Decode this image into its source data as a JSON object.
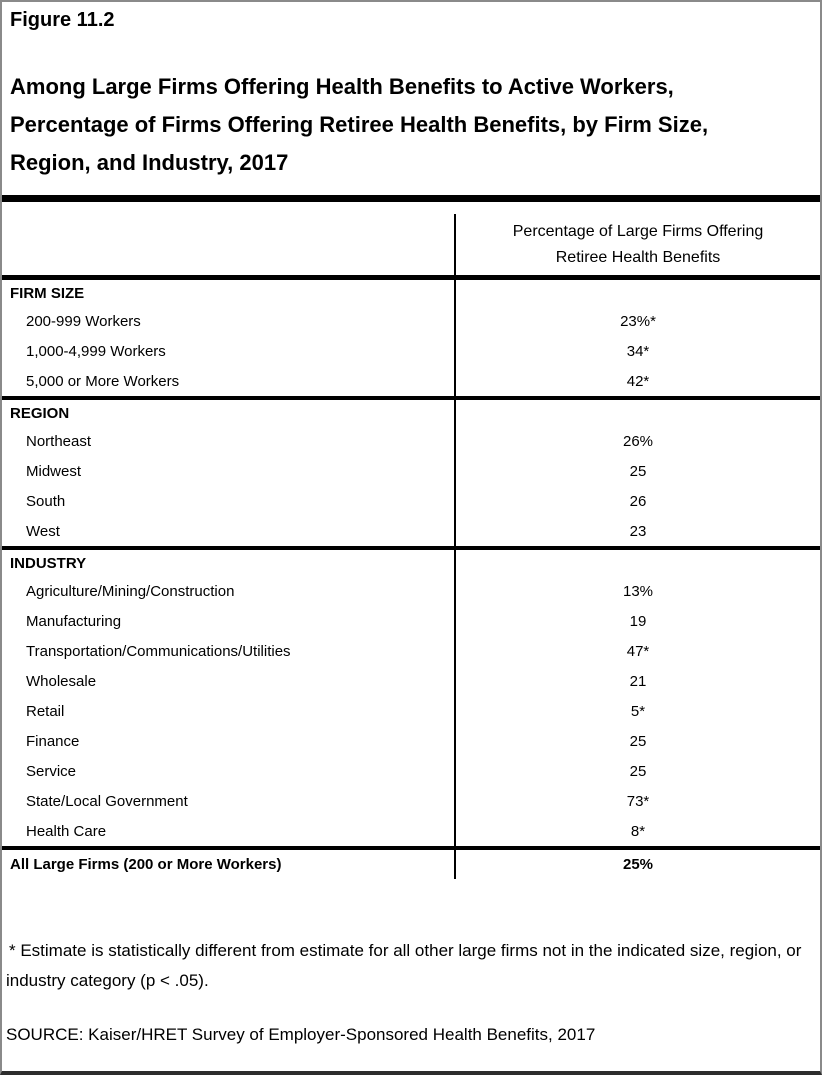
{
  "figure": {
    "label": "Figure 11.2",
    "title_lines": [
      "Among Large Firms Offering Health Benefits to Active Workers,",
      "Percentage of Firms Offering Retiree Health Benefits, by Firm Size,",
      "Region, and Industry, 2017"
    ]
  },
  "table": {
    "value_column_header_line1": "Percentage of Large Firms Offering",
    "value_column_header_line2": "Retiree Health Benefits",
    "sections": [
      {
        "header": "FIRM SIZE",
        "rows": [
          {
            "label": "200-999 Workers",
            "value": "23%*"
          },
          {
            "label": "1,000-4,999 Workers",
            "value": "34*"
          },
          {
            "label": "5,000 or More Workers",
            "value": "42*"
          }
        ]
      },
      {
        "header": "REGION",
        "rows": [
          {
            "label": "Northeast",
            "value": "26%"
          },
          {
            "label": "Midwest",
            "value": "25"
          },
          {
            "label": "South",
            "value": "26"
          },
          {
            "label": "West",
            "value": "23"
          }
        ]
      },
      {
        "header": "INDUSTRY",
        "rows": [
          {
            "label": "Agriculture/Mining/Construction",
            "value": "13%"
          },
          {
            "label": "Manufacturing",
            "value": "19"
          },
          {
            "label": "Transportation/Communications/Utilities",
            "value": "47*"
          },
          {
            "label": "Wholesale",
            "value": "21"
          },
          {
            "label": "Retail",
            "value": "5*"
          },
          {
            "label": "Finance",
            "value": "25"
          },
          {
            "label": "Service",
            "value": "25"
          },
          {
            "label": "State/Local Government",
            "value": "73*"
          },
          {
            "label": "Health Care",
            "value": "8*"
          }
        ]
      }
    ],
    "total_row": {
      "label": "All Large Firms (200 or More Workers)",
      "value": "25%"
    }
  },
  "notes": {
    "footnote": "* Estimate is statistically different from estimate for all other large firms not in the indicated size, region, or industry category (p < .05).",
    "source": "SOURCE: Kaiser/HRET Survey of Employer-Sponsored Health Benefits, 2017"
  }
}
